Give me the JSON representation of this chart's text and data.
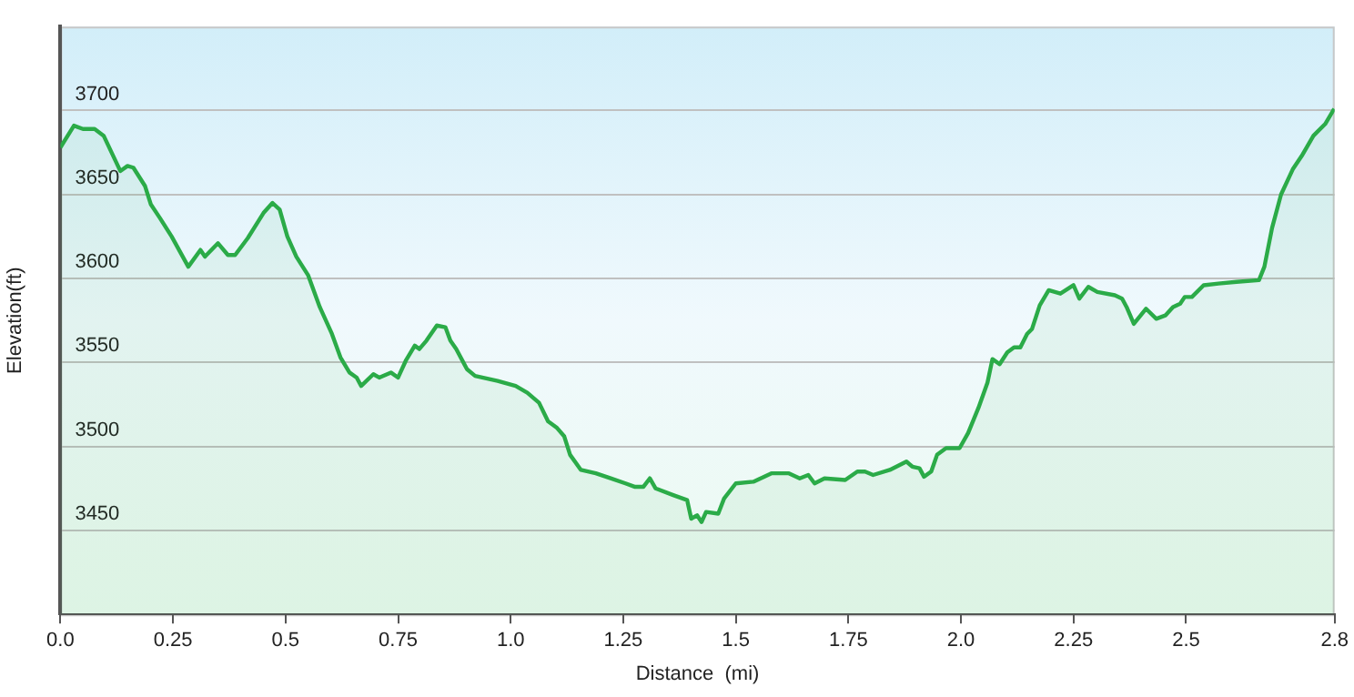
{
  "chart_data": {
    "type": "area",
    "xlabel": "Distance  (mi)",
    "ylabel": "Elevation(ft)",
    "xlim": [
      0,
      2.83
    ],
    "xticks": [
      {
        "value": 0,
        "label": "0.0"
      },
      0.25,
      {
        "value": 0.5,
        "label": "0.5"
      },
      0.75,
      {
        "value": 1,
        "label": "1.0"
      },
      1.25,
      1.5,
      1.75,
      {
        "value": 2,
        "label": "2.0"
      },
      2.25,
      2.5,
      {
        "value": 2.83,
        "label": "2.8"
      }
    ],
    "ylim": [
      3400,
      3750
    ],
    "yticks": [
      3450,
      3500,
      3550,
      3600,
      3650,
      3700
    ],
    "grid": "y",
    "legend": false,
    "marker": "none",
    "line_style": "solid",
    "series": [
      {
        "color": "#2bab48",
        "x": [
          0,
          0.03,
          0.05,
          0.076,
          0.096,
          0.133,
          0.149,
          0.162,
          0.188,
          0.201,
          0.221,
          0.247,
          0.284,
          0.311,
          0.321,
          0.35,
          0.372,
          0.388,
          0.416,
          0.451,
          0.471,
          0.487,
          0.504,
          0.524,
          0.55,
          0.576,
          0.603,
          0.622,
          0.642,
          0.658,
          0.668,
          0.695,
          0.708,
          0.734,
          0.75,
          0.767,
          0.787,
          0.797,
          0.813,
          0.836,
          0.855,
          0.866,
          0.879,
          0.903,
          0.921,
          0.971,
          1.011,
          1.037,
          1.063,
          1.083,
          1.103,
          1.119,
          1.132,
          1.156,
          1.189,
          1.222,
          1.255,
          1.275,
          1.295,
          1.309,
          1.322,
          1.361,
          1.392,
          1.401,
          1.414,
          1.424,
          1.434,
          1.461,
          1.474,
          1.5,
          1.539,
          1.579,
          1.618,
          1.642,
          1.661,
          1.675,
          1.697,
          1.743,
          1.77,
          1.787,
          1.805,
          1.842,
          1.879,
          1.892,
          1.908,
          1.918,
          1.934,
          1.947,
          1.967,
          1.997,
          2.016,
          2.039,
          2.059,
          2.07,
          2.086,
          2.103,
          2.118,
          2.132,
          2.147,
          2.158,
          2.175,
          2.195,
          2.221,
          2.25,
          2.263,
          2.283,
          2.303,
          2.342,
          2.358,
          2.368,
          2.384,
          2.411,
          2.434,
          2.454,
          2.471,
          2.487,
          2.497,
          2.513,
          2.539,
          2.572,
          2.612,
          2.662,
          2.674,
          2.691,
          2.711,
          2.737,
          2.757,
          2.783,
          2.809,
          2.829
        ],
        "values": [
          3678,
          3691,
          3689,
          3689,
          3685,
          3664,
          3667,
          3666,
          3655,
          3644,
          3636,
          3625,
          3607,
          3617,
          3613,
          3621,
          3614,
          3614,
          3624,
          3639,
          3645,
          3641,
          3625,
          3613,
          3602,
          3583,
          3567,
          3553,
          3544,
          3541,
          3536,
          3543,
          3541,
          3544,
          3541,
          3551,
          3560,
          3558,
          3563,
          3572,
          3571,
          3563,
          3558,
          3546,
          3542,
          3539,
          3536,
          3532,
          3526,
          3515,
          3511,
          3506,
          3495,
          3486,
          3484,
          3481,
          3478,
          3476,
          3476,
          3481,
          3475,
          3471,
          3468,
          3457,
          3459,
          3455,
          3461,
          3460,
          3469,
          3478,
          3479,
          3484,
          3484,
          3481,
          3483,
          3478,
          3481,
          3480,
          3485,
          3485,
          3483,
          3486,
          3491,
          3488,
          3487,
          3482,
          3485,
          3495,
          3499,
          3499,
          3508,
          3523,
          3538,
          3552,
          3549,
          3556,
          3559,
          3559,
          3567,
          3570,
          3584,
          3593,
          3591,
          3596,
          3588,
          3595,
          3592,
          3590,
          3588,
          3583,
          3573,
          3582,
          3576,
          3578,
          3583,
          3585,
          3589,
          3589,
          3596,
          3597,
          3598,
          3599,
          3607,
          3630,
          3650,
          3665,
          3673,
          3685,
          3692,
          3701
        ]
      }
    ]
  }
}
